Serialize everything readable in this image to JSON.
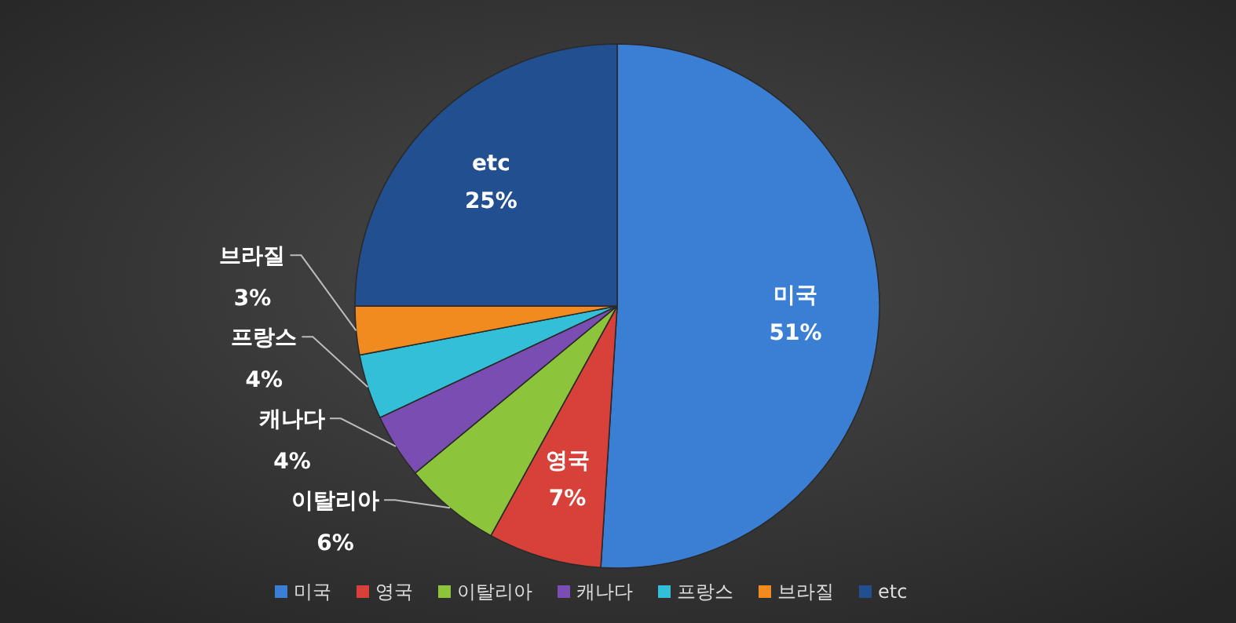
{
  "chart_data": {
    "type": "pie",
    "categories": [
      "미국",
      "영국",
      "이탈리아",
      "캐나다",
      "프랑스",
      "브라질",
      "etc"
    ],
    "values": [
      51,
      7,
      6,
      4,
      4,
      3,
      25
    ],
    "colors": [
      "#3b7fd4",
      "#d8403a",
      "#8cc43c",
      "#7a4db3",
      "#33bfd8",
      "#f28b1f",
      "#214f8f"
    ],
    "value_labels": [
      "51%",
      "7%",
      "6%",
      "4%",
      "4%",
      "3%",
      "25%"
    ],
    "legend": "bottom"
  }
}
